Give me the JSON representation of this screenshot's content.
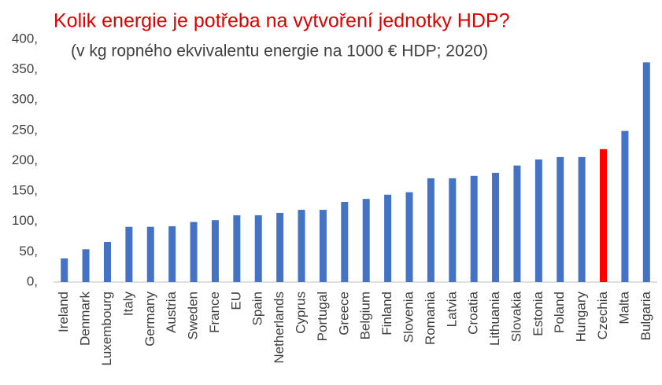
{
  "chart_data": {
    "type": "bar",
    "title": "Kolik energie je potřeba na vytvoření jednotky HDP?",
    "subtitle": "(v kg ropného ekvivalentu energie na 1000 € HDP; 2020)",
    "categories": [
      "Ireland",
      "Denmark",
      "Luxembourg",
      "Italy",
      "Germany",
      "Austria",
      "Sweden",
      "France",
      "EU",
      "Spain",
      "Netherlands",
      "Cyprus",
      "Portugal",
      "Greece",
      "Belgium",
      "Finland",
      "Slovenia",
      "Romania",
      "Latvia",
      "Croatia",
      "Lithuania",
      "Slovakia",
      "Estonia",
      "Poland",
      "Hungary",
      "Czechia",
      "Malta",
      "Bulgaria"
    ],
    "values": [
      39,
      54,
      66,
      91,
      91,
      92,
      99,
      102,
      110,
      110,
      114,
      119,
      119,
      132,
      137,
      144,
      148,
      171,
      171,
      175,
      180,
      192,
      202,
      206,
      206,
      219,
      249,
      362
    ],
    "colors": [
      "#4472c4",
      "#4472c4",
      "#4472c4",
      "#4472c4",
      "#4472c4",
      "#4472c4",
      "#4472c4",
      "#4472c4",
      "#4472c4",
      "#4472c4",
      "#4472c4",
      "#4472c4",
      "#4472c4",
      "#4472c4",
      "#4472c4",
      "#4472c4",
      "#4472c4",
      "#4472c4",
      "#4472c4",
      "#4472c4",
      "#4472c4",
      "#4472c4",
      "#4472c4",
      "#4472c4",
      "#4472c4",
      "#ff0000",
      "#4472c4",
      "#4472c4"
    ],
    "ylim": [
      0,
      400
    ],
    "yticks": [
      {
        "value": 0,
        "label": "0,"
      },
      {
        "value": 50,
        "label": "50,"
      },
      {
        "value": 100,
        "label": "100,"
      },
      {
        "value": 150,
        "label": "150,"
      },
      {
        "value": 200,
        "label": "200,"
      },
      {
        "value": 250,
        "label": "250,"
      },
      {
        "value": 300,
        "label": "300,"
      },
      {
        "value": 350,
        "label": "350,"
      },
      {
        "value": 400,
        "label": "400,"
      }
    ],
    "grid": false
  }
}
